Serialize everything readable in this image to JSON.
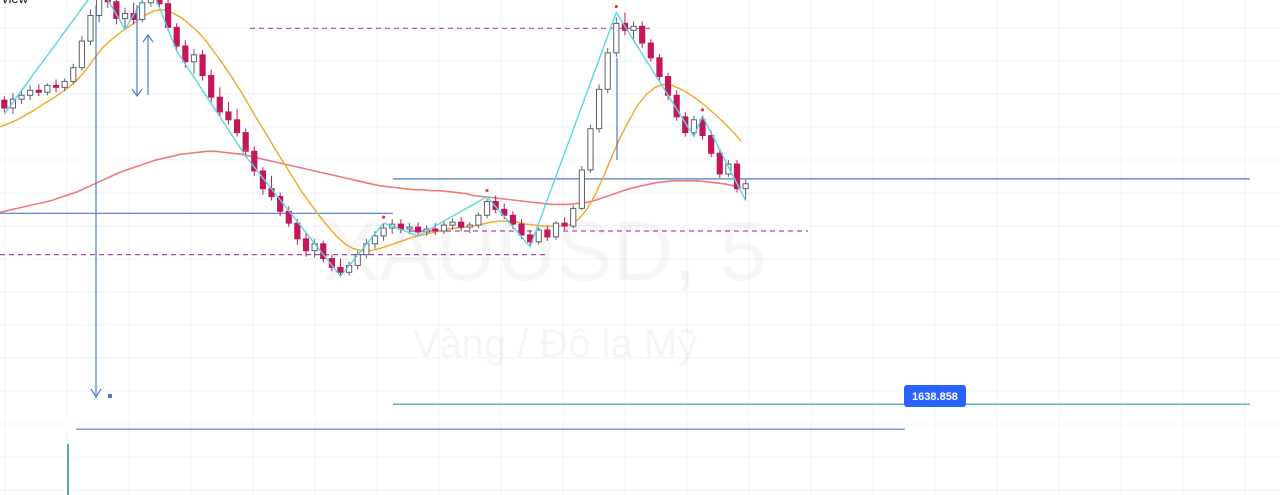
{
  "header": {
    "corner_text": "view"
  },
  "watermark": {
    "symbol": "XAUUSD, 5",
    "description": "Vàng / Đô la Mỹ"
  },
  "colors": {
    "up": "#5d606b",
    "down": "#c2185b",
    "grid": "#f0f3fa",
    "horizontal_line": "#4a7bd1",
    "teal_line": "#2a9d8f",
    "dashed_line": "#a64ca6",
    "ma_fast": "#f5a623",
    "ma_slow": "#ef7a7a",
    "zigzag": "#5ad6e0",
    "price_label_bg": "#2962ff",
    "dots": "#e53935"
  },
  "price_label": {
    "value": "1638.858"
  },
  "chart_data": {
    "type": "candlestick",
    "symbol": "XAUUSD",
    "timeframe": "5",
    "ylim": [
      1634,
      1684
    ],
    "ylabel": "",
    "xlabel": "",
    "grid": true,
    "legend": "none",
    "ohlc": [
      [
        1672.3,
        1672.7,
        1671.1,
        1671.5
      ],
      [
        1671.5,
        1673.0,
        1670.9,
        1672.4
      ],
      [
        1672.4,
        1673.4,
        1671.9,
        1672.8
      ],
      [
        1672.8,
        1673.8,
        1672.3,
        1673.3
      ],
      [
        1673.3,
        1673.9,
        1672.7,
        1673.1
      ],
      [
        1673.1,
        1674.0,
        1672.8,
        1673.8
      ],
      [
        1673.8,
        1674.4,
        1673.1,
        1673.6
      ],
      [
        1673.6,
        1674.5,
        1673.2,
        1674.2
      ],
      [
        1674.2,
        1676.0,
        1673.9,
        1675.6
      ],
      [
        1675.6,
        1678.8,
        1675.3,
        1678.3
      ],
      [
        1678.3,
        1681.5,
        1677.9,
        1680.9
      ],
      [
        1680.9,
        1683.6,
        1680.2,
        1682.9
      ],
      [
        1682.9,
        1684.0,
        1681.7,
        1682.3
      ],
      [
        1682.3,
        1683.0,
        1680.0,
        1680.6
      ],
      [
        1680.6,
        1681.7,
        1679.5,
        1681.1
      ],
      [
        1681.1,
        1682.2,
        1680.0,
        1680.5
      ],
      [
        1680.5,
        1682.7,
        1680.2,
        1682.2
      ],
      [
        1682.2,
        1683.7,
        1681.8,
        1683.1
      ],
      [
        1683.1,
        1684.0,
        1681.6,
        1682.1
      ],
      [
        1682.1,
        1682.5,
        1679.3,
        1679.7
      ],
      [
        1679.7,
        1680.1,
        1677.3,
        1677.8
      ],
      [
        1677.8,
        1678.4,
        1675.6,
        1676.2
      ],
      [
        1676.2,
        1677.5,
        1675.0,
        1676.9
      ],
      [
        1676.9,
        1677.4,
        1674.3,
        1674.8
      ],
      [
        1674.8,
        1675.4,
        1672.1,
        1672.6
      ],
      [
        1672.6,
        1673.6,
        1670.7,
        1671.1
      ],
      [
        1671.1,
        1672.1,
        1669.8,
        1670.3
      ],
      [
        1670.3,
        1671.4,
        1668.6,
        1669.0
      ],
      [
        1669.0,
        1669.4,
        1666.6,
        1667.1
      ],
      [
        1667.1,
        1667.6,
        1664.6,
        1665.1
      ],
      [
        1665.1,
        1665.5,
        1662.7,
        1663.3
      ],
      [
        1663.3,
        1664.6,
        1662.1,
        1662.5
      ],
      [
        1662.5,
        1662.9,
        1660.5,
        1661.0
      ],
      [
        1661.0,
        1661.5,
        1659.4,
        1659.8
      ],
      [
        1659.8,
        1660.2,
        1657.6,
        1658.2
      ],
      [
        1658.2,
        1658.9,
        1656.4,
        1657.0
      ],
      [
        1657.0,
        1658.2,
        1656.3,
        1657.7
      ],
      [
        1657.7,
        1658.0,
        1655.8,
        1656.2
      ],
      [
        1656.2,
        1656.6,
        1654.9,
        1655.3
      ],
      [
        1655.3,
        1656.2,
        1654.4,
        1654.8
      ],
      [
        1654.8,
        1655.9,
        1654.5,
        1655.5
      ],
      [
        1655.5,
        1657.0,
        1655.1,
        1656.6
      ],
      [
        1656.6,
        1658.2,
        1656.2,
        1657.7
      ],
      [
        1657.7,
        1659.0,
        1657.2,
        1658.5
      ],
      [
        1658.5,
        1659.8,
        1658.0,
        1659.3
      ],
      [
        1659.3,
        1660.2,
        1658.7,
        1659.7
      ],
      [
        1659.7,
        1660.2,
        1658.8,
        1659.2
      ],
      [
        1659.2,
        1659.8,
        1658.7,
        1659.4
      ],
      [
        1659.4,
        1659.9,
        1658.5,
        1658.9
      ],
      [
        1658.9,
        1659.6,
        1658.5,
        1659.2
      ],
      [
        1659.2,
        1659.8,
        1658.6,
        1659.0
      ],
      [
        1659.0,
        1660.1,
        1658.7,
        1659.6
      ],
      [
        1659.6,
        1660.3,
        1659.1,
        1659.9
      ],
      [
        1659.9,
        1660.4,
        1659.0,
        1659.4
      ],
      [
        1659.4,
        1659.9,
        1658.8,
        1659.6
      ],
      [
        1659.6,
        1660.9,
        1659.3,
        1660.6
      ],
      [
        1660.6,
        1662.3,
        1660.3,
        1662.0
      ],
      [
        1662.0,
        1662.6,
        1660.8,
        1661.2
      ],
      [
        1661.2,
        1661.8,
        1660.2,
        1660.6
      ],
      [
        1660.6,
        1661.0,
        1659.2,
        1659.7
      ],
      [
        1659.7,
        1660.2,
        1658.2,
        1658.6
      ],
      [
        1658.6,
        1659.1,
        1657.4,
        1657.9
      ],
      [
        1657.9,
        1659.4,
        1657.6,
        1659.1
      ],
      [
        1659.1,
        1659.5,
        1658.0,
        1658.4
      ],
      [
        1658.4,
        1660.0,
        1658.1,
        1659.8
      ],
      [
        1659.8,
        1660.4,
        1659.1,
        1659.5
      ],
      [
        1659.5,
        1661.6,
        1659.3,
        1661.3
      ],
      [
        1661.3,
        1665.6,
        1661.1,
        1665.2
      ],
      [
        1665.2,
        1669.8,
        1664.9,
        1669.4
      ],
      [
        1669.4,
        1673.9,
        1669.0,
        1673.4
      ],
      [
        1673.4,
        1677.6,
        1673.0,
        1677.1
      ],
      [
        1677.1,
        1680.7,
        1676.7,
        1680.1
      ],
      [
        1680.1,
        1681.2,
        1678.9,
        1679.4
      ],
      [
        1679.4,
        1680.3,
        1678.5,
        1679.8
      ],
      [
        1679.8,
        1680.3,
        1677.6,
        1678.1
      ],
      [
        1678.1,
        1678.5,
        1676.2,
        1676.6
      ],
      [
        1676.6,
        1677.0,
        1674.3,
        1674.7
      ],
      [
        1674.7,
        1675.1,
        1672.3,
        1672.8
      ],
      [
        1672.8,
        1673.3,
        1670.2,
        1670.6
      ],
      [
        1670.6,
        1671.1,
        1668.6,
        1669.0
      ],
      [
        1669.0,
        1670.7,
        1668.7,
        1670.3
      ],
      [
        1670.3,
        1670.7,
        1668.3,
        1668.7
      ],
      [
        1668.7,
        1669.2,
        1666.5,
        1666.9
      ],
      [
        1666.9,
        1667.4,
        1664.4,
        1664.8
      ],
      [
        1664.8,
        1666.2,
        1664.5,
        1665.8
      ],
      [
        1665.8,
        1666.2,
        1662.9,
        1663.3
      ],
      [
        1663.3,
        1664.2,
        1662.1,
        1663.8
      ]
    ],
    "ma_fast": [
      1669.6,
      1669.9,
      1670.3,
      1670.8,
      1671.3,
      1671.9,
      1672.4,
      1673.0,
      1673.6,
      1674.4,
      1675.4,
      1676.6,
      1677.7,
      1678.5,
      1679.2,
      1679.8,
      1680.4,
      1681.0,
      1681.4,
      1681.5,
      1681.2,
      1680.7,
      1680.0,
      1679.2,
      1678.2,
      1677.0,
      1675.8,
      1674.5,
      1673.1,
      1671.6,
      1670.1,
      1668.7,
      1667.2,
      1665.8,
      1664.4,
      1663.0,
      1661.8,
      1660.6,
      1659.5,
      1658.5,
      1657.7,
      1657.2,
      1657.0,
      1657.0,
      1657.2,
      1657.5,
      1657.8,
      1658.1,
      1658.4,
      1658.6,
      1658.8,
      1659.0,
      1659.2,
      1659.3,
      1659.4,
      1659.5,
      1659.7,
      1659.9,
      1660.0,
      1660.0,
      1659.9,
      1659.7,
      1659.6,
      1659.5,
      1659.5,
      1659.5,
      1659.6,
      1660.1,
      1661.1,
      1662.6,
      1664.5,
      1666.6,
      1668.6,
      1670.3,
      1671.8,
      1672.9,
      1673.6,
      1673.9,
      1673.8,
      1673.4,
      1672.9,
      1672.3,
      1671.6,
      1670.8,
      1670.0,
      1669.1,
      1668.1
    ],
    "ma_slow": [
      1660.9,
      1661.1,
      1661.3,
      1661.5,
      1661.7,
      1661.9,
      1662.1,
      1662.4,
      1662.7,
      1663.0,
      1663.4,
      1663.8,
      1664.2,
      1664.6,
      1665.0,
      1665.3,
      1665.6,
      1665.9,
      1666.2,
      1666.4,
      1666.6,
      1666.8,
      1666.9,
      1667.0,
      1667.1,
      1667.1,
      1667.0,
      1666.9,
      1666.8,
      1666.6,
      1666.4,
      1666.2,
      1666.0,
      1665.8,
      1665.6,
      1665.4,
      1665.2,
      1665.0,
      1664.8,
      1664.6,
      1664.4,
      1664.2,
      1664.0,
      1663.8,
      1663.6,
      1663.5,
      1663.4,
      1663.3,
      1663.2,
      1663.2,
      1663.1,
      1663.1,
      1663.0,
      1662.9,
      1662.8,
      1662.6,
      1662.5,
      1662.4,
      1662.3,
      1662.2,
      1662.1,
      1662.0,
      1661.9,
      1661.8,
      1661.7,
      1661.7,
      1661.7,
      1661.8,
      1661.9,
      1662.1,
      1662.4,
      1662.7,
      1663.0,
      1663.3,
      1663.5,
      1663.7,
      1663.9,
      1664.0,
      1664.1,
      1664.1,
      1664.1,
      1664.1,
      1664.0,
      1663.9,
      1663.8,
      1663.6,
      1663.4
    ],
    "zigzag": [
      [
        0,
        1670.9
      ],
      [
        11,
        1684.0
      ],
      [
        14,
        1679.5
      ],
      [
        17,
        1683.9
      ],
      [
        20,
        1677.3
      ],
      [
        28,
        1666.6
      ],
      [
        39,
        1654.4
      ],
      [
        44,
        1659.8
      ],
      [
        48,
        1658.5
      ],
      [
        56,
        1662.5
      ],
      [
        61,
        1657.4
      ],
      [
        71,
        1681.2
      ],
      [
        80,
        1668.6
      ],
      [
        81,
        1670.7
      ],
      [
        86,
        1662.1
      ]
    ],
    "horizontal_levels": [
      {
        "price": 1664.3,
        "style": "solid",
        "color": "horizontal_line"
      },
      {
        "price": 1660.8,
        "style": "solid",
        "color": "horizontal_line"
      },
      {
        "price": 1641.4,
        "style": "solid",
        "color": "teal_line"
      },
      {
        "price": 1638.858,
        "style": "solid",
        "color": "horizontal_line"
      },
      {
        "price": 1679.6,
        "style": "dashed",
        "color": "dashed_line"
      },
      {
        "price": 1659.0,
        "style": "dashed",
        "color": "dashed_line"
      },
      {
        "price": 1656.6,
        "style": "dashed",
        "color": "dashed_line"
      }
    ],
    "annotations": [
      {
        "type": "vertical-line",
        "label": ""
      },
      {
        "type": "arrow-down",
        "label": ""
      },
      {
        "type": "arrow-up",
        "label": ""
      }
    ]
  }
}
